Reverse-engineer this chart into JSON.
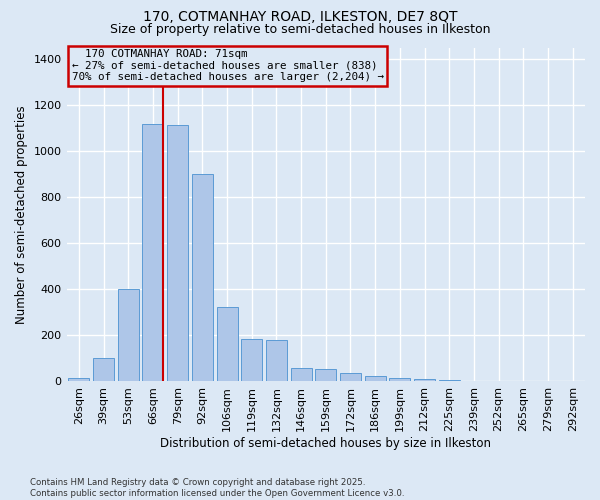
{
  "title1": "170, COTMANHAY ROAD, ILKESTON, DE7 8QT",
  "title2": "Size of property relative to semi-detached houses in Ilkeston",
  "xlabel": "Distribution of semi-detached houses by size in Ilkeston",
  "ylabel": "Number of semi-detached properties",
  "footnote1": "Contains HM Land Registry data © Crown copyright and database right 2025.",
  "footnote2": "Contains public sector information licensed under the Open Government Licence v3.0.",
  "bin_labels": [
    "26sqm",
    "39sqm",
    "53sqm",
    "66sqm",
    "79sqm",
    "92sqm",
    "106sqm",
    "119sqm",
    "132sqm",
    "146sqm",
    "159sqm",
    "172sqm",
    "186sqm",
    "199sqm",
    "212sqm",
    "225sqm",
    "239sqm",
    "252sqm",
    "265sqm",
    "279sqm",
    "292sqm"
  ],
  "bar_values": [
    15,
    100,
    400,
    1120,
    1115,
    900,
    325,
    185,
    180,
    60,
    55,
    35,
    25,
    15,
    10,
    5,
    0,
    0,
    0,
    0,
    0
  ],
  "bar_color": "#aec6e8",
  "bar_edge_color": "#5b9bd5",
  "property_label": "170 COTMANHAY ROAD: 71sqm",
  "smaller_pct": "27%",
  "smaller_n": "838",
  "larger_pct": "70%",
  "larger_n": "2,204",
  "vline_color": "#cc0000",
  "vline_x_index": 3.42,
  "annotation_box_color": "#cc0000",
  "ylim": [
    0,
    1450
  ],
  "yticks": [
    0,
    200,
    400,
    600,
    800,
    1000,
    1200,
    1400
  ],
  "bg_color": "#dce8f5",
  "grid_color": "#ffffff",
  "title1_fontsize": 10,
  "title2_fontsize": 9
}
